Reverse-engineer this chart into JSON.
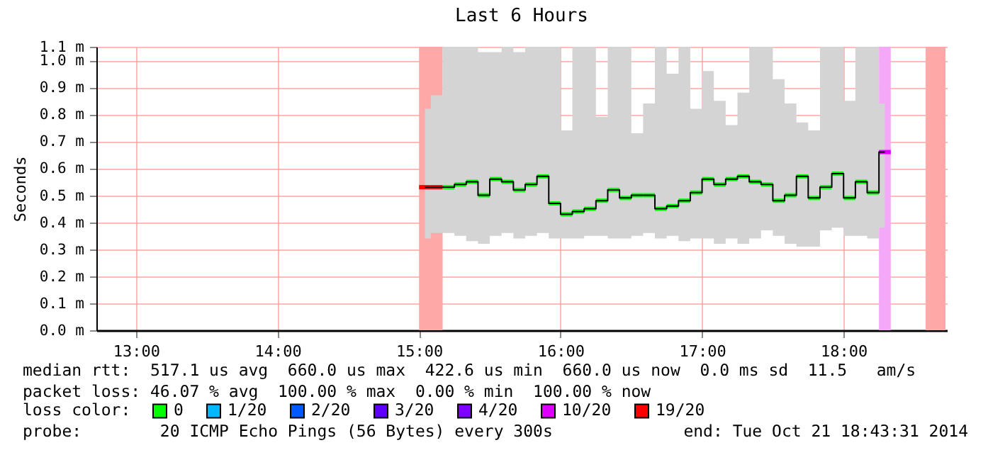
{
  "chart_data": {
    "type": "step",
    "title": "Last 6 Hours",
    "ylabel": "Seconds",
    "legend_title": "loss color:",
    "legend": "bottom",
    "grid": true,
    "annotations": [
      "median rtt:  517.1 us avg  660.0 us max  422.6 us min  660.0 us now  0.0 ms sd  11.5   am/s",
      "packet loss: 46.07 % avg  100.00 % max  0.00 % min  100.00 % now",
      "probe:        20 ICMP Echo Pings (56 Bytes) every 300s",
      "end: Tue Oct 21 18:43:31 2014"
    ],
    "xlim": [
      12.72,
      18.73
    ],
    "xticks": [
      {
        "value": 13,
        "label": "13:00"
      },
      {
        "value": 14,
        "label": "14:00"
      },
      {
        "value": 15,
        "label": "15:00"
      },
      {
        "value": 16,
        "label": "16:00"
      },
      {
        "value": 17,
        "label": "17:00"
      },
      {
        "value": 18,
        "label": "18:00"
      }
    ],
    "ylim": [
      0,
      1.05
    ],
    "yticks": [
      {
        "value": 0,
        "label": "0.0 m"
      },
      {
        "value": 0.1,
        "label": "0.1 m"
      },
      {
        "value": 0.2,
        "label": "0.2 m"
      },
      {
        "value": 0.3,
        "label": "0.3 m"
      },
      {
        "value": 0.4,
        "label": "0.4 m"
      },
      {
        "value": 0.5,
        "label": "0.5 m"
      },
      {
        "value": 0.6,
        "label": "0.6 m"
      },
      {
        "value": 0.7,
        "label": "0.7 m"
      },
      {
        "value": 0.8,
        "label": "0.8 m"
      },
      {
        "value": 0.9,
        "label": "0.9 m"
      },
      {
        "value": 1.0,
        "label": "1.0 m"
      },
      {
        "value": 1.05,
        "label": "1.1 m"
      }
    ],
    "x": [
      15.0417,
      15.125,
      15.2083,
      15.2917,
      15.375,
      15.4583,
      15.5417,
      15.625,
      15.7083,
      15.7917,
      15.875,
      15.9583,
      16.0417,
      16.125,
      16.2083,
      16.2917,
      16.375,
      16.4583,
      16.5417,
      16.625,
      16.7083,
      16.7917,
      16.875,
      16.9583,
      17.0417,
      17.125,
      17.2083,
      17.2917,
      17.375,
      17.4583,
      17.5417,
      17.625,
      17.7083,
      17.7917,
      17.875,
      17.9583,
      18.0417,
      18.125,
      18.2083,
      18.2917
    ],
    "bands": [
      {
        "axis": "x",
        "from": 15,
        "to": 15.1667,
        "color": "#ffa8a8"
      },
      {
        "axis": "x",
        "from": 18.25,
        "to": 18.3333,
        "color": "#f4a8f8"
      },
      {
        "axis": "x",
        "from": 18.58,
        "to": 18.72,
        "color": "#ffa8a8"
      }
    ],
    "series": [
      {
        "color": "#000000",
        "values": [
          0.53,
          0.53,
          0.53,
          0.54,
          0.55,
          0.5,
          0.56,
          0.55,
          0.52,
          0.54,
          0.57,
          0.47,
          0.43,
          0.44,
          0.45,
          0.48,
          0.52,
          0.49,
          0.5,
          0.5,
          0.45,
          0.46,
          0.48,
          0.51,
          0.56,
          0.54,
          0.56,
          0.57,
          0.55,
          0.54,
          0.48,
          0.5,
          0.57,
          0.49,
          0.53,
          0.58,
          0.49,
          0.55,
          0.51,
          0.66
        ],
        "upper": [
          0.82,
          0.87,
          1.05,
          1.05,
          1.05,
          1.03,
          1.03,
          1.05,
          1.03,
          1.05,
          1.05,
          1.05,
          0.74,
          1.05,
          1.05,
          0.79,
          1.05,
          1.05,
          0.73,
          0.84,
          1.05,
          0.95,
          1.05,
          0.82,
          0.96,
          0.85,
          0.76,
          0.88,
          1.05,
          1.05,
          0.93,
          0.84,
          0.77,
          0.74,
          1.05,
          1.05,
          0.85,
          1.05,
          1.05,
          0.84
        ],
        "lower": [
          0.34,
          0.36,
          0.36,
          0.35,
          0.33,
          0.32,
          0.35,
          0.36,
          0.34,
          0.35,
          0.36,
          0.34,
          0.34,
          0.34,
          0.35,
          0.35,
          0.34,
          0.34,
          0.35,
          0.36,
          0.34,
          0.35,
          0.33,
          0.34,
          0.34,
          0.32,
          0.34,
          0.32,
          0.34,
          0.37,
          0.35,
          0.32,
          0.31,
          0.31,
          0.37,
          0.38,
          0.35,
          0.35,
          0.34,
          0.38
        ]
      },
      {
        "name": "0",
        "type": "scatter",
        "color": "#00ff00",
        "values": [
          null,
          null,
          0.53,
          0.54,
          0.55,
          0.5,
          0.56,
          0.55,
          0.52,
          0.54,
          0.57,
          0.47,
          0.43,
          0.44,
          0.45,
          0.48,
          0.52,
          0.49,
          0.5,
          0.5,
          0.45,
          0.46,
          0.48,
          0.51,
          0.56,
          0.54,
          0.56,
          0.57,
          0.55,
          0.54,
          0.48,
          0.5,
          0.57,
          0.49,
          0.53,
          0.58,
          0.49,
          0.55,
          0.51,
          null
        ]
      },
      {
        "name": "1/20",
        "type": "scatter",
        "color": "#00b8ff",
        "values": [
          null,
          null,
          null,
          null,
          null,
          null,
          null,
          null,
          null,
          null,
          null,
          null,
          null,
          null,
          null,
          null,
          null,
          null,
          null,
          null,
          null,
          null,
          null,
          null,
          null,
          null,
          null,
          null,
          null,
          null,
          null,
          null,
          null,
          null,
          null,
          null,
          null,
          null,
          null,
          null
        ]
      },
      {
        "name": "2/20",
        "type": "scatter",
        "color": "#0059ff",
        "values": [
          null,
          null,
          null,
          null,
          null,
          null,
          null,
          null,
          null,
          null,
          null,
          null,
          null,
          null,
          null,
          null,
          null,
          null,
          null,
          null,
          null,
          null,
          null,
          null,
          null,
          null,
          null,
          null,
          null,
          null,
          null,
          null,
          null,
          null,
          null,
          null,
          null,
          null,
          null,
          null
        ]
      },
      {
        "name": "3/20",
        "type": "scatter",
        "color": "#5e00ff",
        "values": [
          null,
          null,
          null,
          null,
          null,
          null,
          null,
          null,
          null,
          null,
          null,
          null,
          null,
          null,
          null,
          null,
          null,
          null,
          null,
          null,
          null,
          null,
          null,
          null,
          null,
          null,
          null,
          null,
          null,
          null,
          null,
          null,
          null,
          null,
          null,
          null,
          null,
          null,
          null,
          null
        ]
      },
      {
        "name": "4/20",
        "type": "scatter",
        "color": "#7e00ff",
        "values": [
          null,
          null,
          null,
          null,
          null,
          null,
          null,
          null,
          null,
          null,
          null,
          null,
          null,
          null,
          null,
          null,
          null,
          null,
          null,
          null,
          null,
          null,
          null,
          null,
          null,
          null,
          null,
          null,
          null,
          null,
          null,
          null,
          null,
          null,
          null,
          null,
          null,
          null,
          null,
          null
        ]
      },
      {
        "name": "10/20",
        "type": "scatter",
        "color": "#dd00ff",
        "values": [
          null,
          null,
          null,
          null,
          null,
          null,
          null,
          null,
          null,
          null,
          null,
          null,
          null,
          null,
          null,
          null,
          null,
          null,
          null,
          null,
          null,
          null,
          null,
          null,
          null,
          null,
          null,
          null,
          null,
          null,
          null,
          null,
          null,
          null,
          null,
          null,
          null,
          null,
          null,
          0.66
        ]
      },
      {
        "name": "19/20",
        "type": "scatter",
        "color": "#ff0000",
        "values": [
          0.53,
          0.53,
          null,
          null,
          null,
          null,
          null,
          null,
          null,
          null,
          null,
          null,
          null,
          null,
          null,
          null,
          null,
          null,
          null,
          null,
          null,
          null,
          null,
          null,
          null,
          null,
          null,
          null,
          null,
          null,
          null,
          null,
          null,
          null,
          null,
          null,
          null,
          null,
          null,
          null
        ]
      }
    ]
  }
}
